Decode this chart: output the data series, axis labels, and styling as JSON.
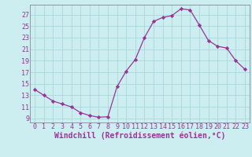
{
  "x": [
    0,
    1,
    2,
    3,
    4,
    5,
    6,
    7,
    8,
    9,
    10,
    11,
    12,
    13,
    14,
    15,
    16,
    17,
    18,
    19,
    20,
    21,
    22,
    23
  ],
  "y": [
    14.0,
    13.0,
    12.0,
    11.5,
    11.0,
    10.0,
    9.5,
    9.2,
    9.3,
    14.5,
    17.2,
    19.2,
    23.0,
    25.8,
    26.5,
    26.8,
    28.0,
    27.8,
    25.2,
    22.5,
    21.5,
    21.2,
    19.0,
    17.5
  ],
  "line_color": "#993399",
  "marker": "D",
  "marker_size": 2.2,
  "bg_color": "#cdeef0",
  "grid_color": "#aad8dc",
  "xlabel": "Windchill (Refroidissement éolien,°C)",
  "xlabel_fontsize": 7,
  "xtick_labels": [
    "0",
    "1",
    "2",
    "3",
    "4",
    "5",
    "6",
    "7",
    "8",
    "9",
    "10",
    "11",
    "12",
    "13",
    "14",
    "15",
    "16",
    "17",
    "18",
    "19",
    "20",
    "21",
    "22",
    "23"
  ],
  "ytick_values": [
    9,
    11,
    13,
    15,
    17,
    19,
    21,
    23,
    25,
    27
  ],
  "ylim": [
    8.3,
    28.7
  ],
  "xlim": [
    -0.5,
    23.5
  ],
  "tick_fontsize": 6,
  "spine_color": "#888899"
}
